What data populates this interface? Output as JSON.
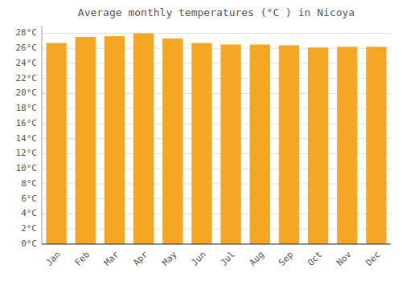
{
  "chart_data": {
    "type": "bar",
    "title": "Average monthly temperatures (°C ) in Nicoya",
    "categories": [
      "Jan",
      "Feb",
      "Mar",
      "Apr",
      "May",
      "Jun",
      "Jul",
      "Aug",
      "Sep",
      "Oct",
      "Nov",
      "Dec"
    ],
    "values": [
      26.7,
      27.5,
      27.6,
      28.0,
      27.3,
      26.7,
      26.5,
      26.5,
      26.4,
      26.1,
      26.2,
      26.2
    ],
    "color": "#F5A623",
    "ylim": [
      0,
      29
    ],
    "yticks": [
      {
        "value": 0,
        "label": "0°C"
      },
      {
        "value": 2,
        "label": "2°C"
      },
      {
        "value": 4,
        "label": "4°C"
      },
      {
        "value": 6,
        "label": "6°C"
      },
      {
        "value": 8,
        "label": "8°C"
      },
      {
        "value": 10,
        "label": "10°C"
      },
      {
        "value": 12,
        "label": "12°C"
      },
      {
        "value": 14,
        "label": "14°C"
      },
      {
        "value": 16,
        "label": "16°C"
      },
      {
        "value": 18,
        "label": "18°C"
      },
      {
        "value": 20,
        "label": "20°C"
      },
      {
        "value": 22,
        "label": "22°C"
      },
      {
        "value": 24,
        "label": "24°C"
      },
      {
        "value": 26,
        "label": "26°C"
      },
      {
        "value": 28,
        "label": "28°C"
      }
    ],
    "grid": true
  }
}
